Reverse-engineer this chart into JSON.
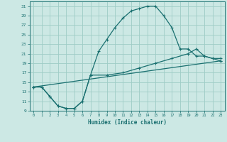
{
  "xlabel": "Humidex (Indice chaleur)",
  "bg_color": "#cce8e4",
  "grid_color": "#9eccc6",
  "line_color": "#1a7070",
  "xlim": [
    -0.5,
    23.5
  ],
  "ylim": [
    9,
    32
  ],
  "xticks": [
    0,
    1,
    2,
    3,
    4,
    5,
    6,
    7,
    8,
    9,
    10,
    11,
    12,
    13,
    14,
    15,
    16,
    17,
    18,
    19,
    20,
    21,
    22,
    23
  ],
  "yticks": [
    9,
    11,
    13,
    15,
    17,
    19,
    21,
    23,
    25,
    27,
    29,
    31
  ],
  "curve1_x": [
    0,
    1,
    2,
    3,
    4,
    5,
    6,
    7,
    8,
    9,
    10,
    11,
    12,
    13,
    14,
    15,
    16,
    17,
    18,
    19,
    20,
    21,
    22,
    23
  ],
  "curve1_y": [
    14,
    14,
    12,
    10,
    9.5,
    9.5,
    11,
    16.5,
    21.5,
    24,
    26.5,
    28.5,
    30,
    30.5,
    31,
    31,
    29,
    26.5,
    22,
    22,
    20.5,
    20.5,
    20,
    20
  ],
  "curve2_x": [
    0,
    1,
    2,
    3,
    4,
    5,
    6,
    7,
    9,
    11,
    13,
    15,
    17,
    19,
    20,
    21,
    22,
    23
  ],
  "curve2_y": [
    14,
    14,
    12,
    10,
    9.5,
    9.5,
    11,
    16.5,
    16.5,
    17,
    18,
    19,
    20,
    21,
    22,
    20.5,
    20,
    19.5
  ],
  "curve3_x": [
    0,
    23
  ],
  "curve3_y": [
    14,
    19.5
  ]
}
